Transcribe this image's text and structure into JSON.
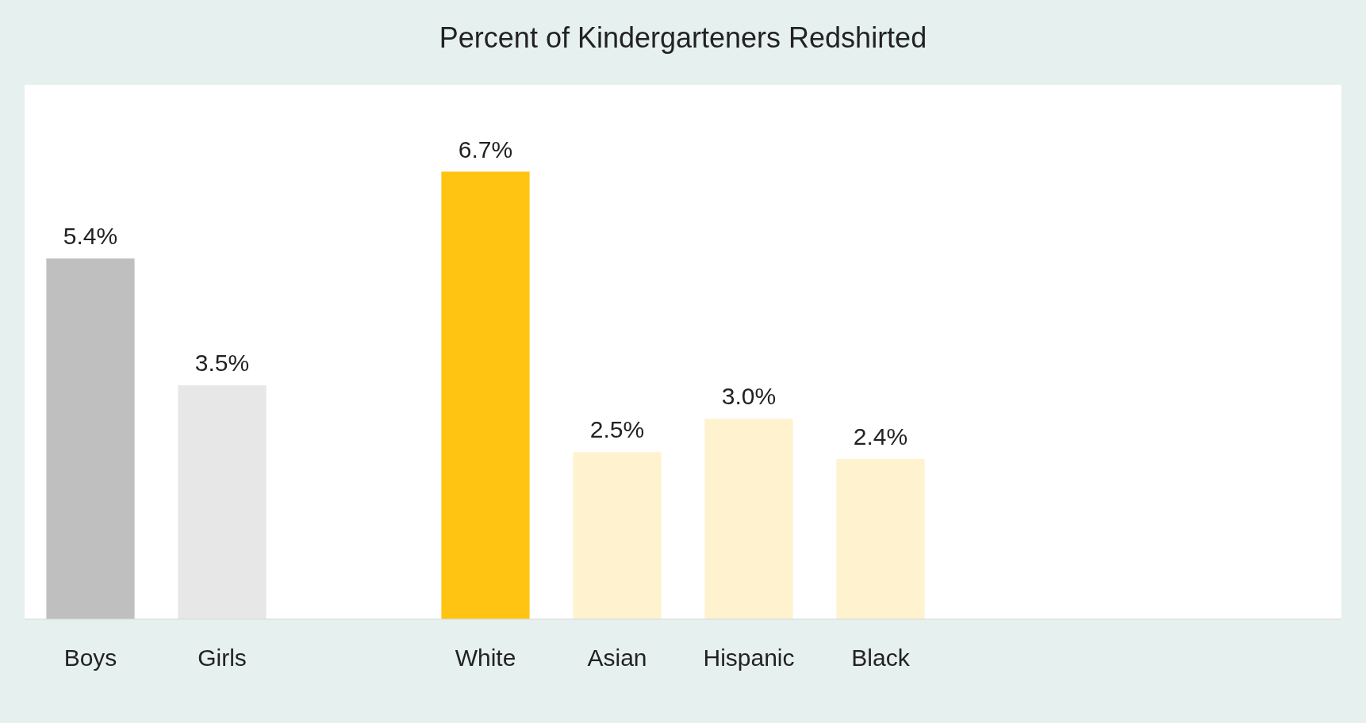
{
  "chart_data": {
    "type": "bar",
    "title": "Percent of Kindergarteners Redshirted",
    "categories": [
      "Boys",
      "Girls",
      null,
      "White",
      "Asian",
      "Hispanic",
      "Black",
      null,
      null,
      null
    ],
    "values": [
      5.4,
      3.5,
      null,
      6.7,
      2.5,
      3.0,
      2.4,
      null,
      null,
      null
    ],
    "value_labels": [
      "5.4%",
      "3.5%",
      null,
      "6.7%",
      "2.5%",
      "3.0%",
      "2.4%",
      null,
      null,
      null
    ],
    "colors": [
      "#bfbfbf",
      "#e7e7e7",
      null,
      "#ffc312",
      "#fff2cf",
      "#fff2cf",
      "#fff2cf",
      null,
      null,
      null
    ],
    "ylim": [
      0,
      8
    ]
  }
}
